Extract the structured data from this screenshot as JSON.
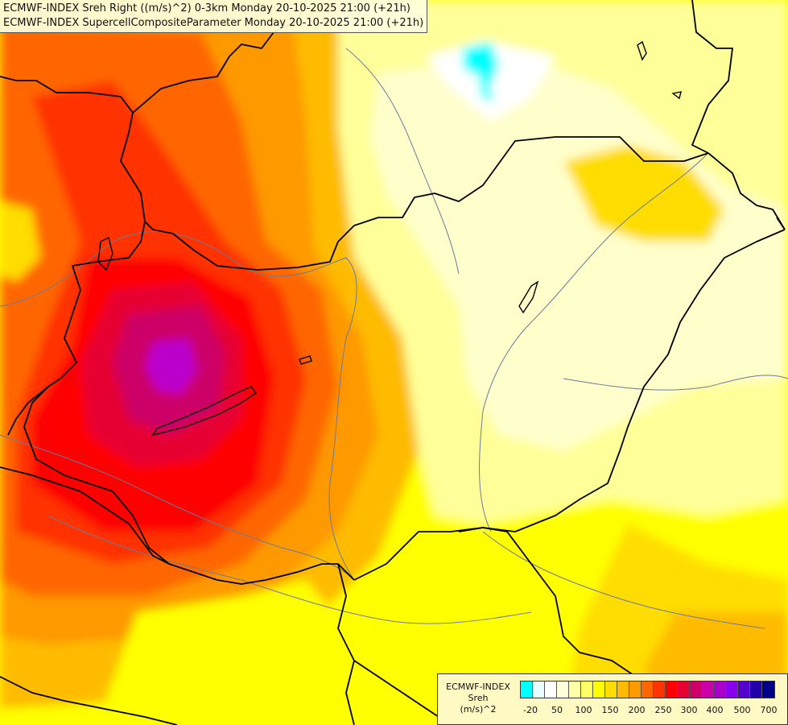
{
  "header": {
    "line1": "ECMWF-INDEX Sreh Right ((m/s)^2) 0-3km Monday 20-10-2025 21:00 (+21h)",
    "line2": "ECMWF-INDEX SupercellCompositeParameter Monday 20-10-2025 21:00 (+21h)"
  },
  "legend": {
    "title1": "ECMWF-INDEX",
    "title2": "Sreh",
    "unit": "(m/s)^2",
    "colors": [
      "#00ffff",
      "#e8ffff",
      "#ffffff",
      "#ffffd9",
      "#ffffa8",
      "#ffff66",
      "#ffff00",
      "#ffdd00",
      "#ffbb00",
      "#ff9900",
      "#ff6600",
      "#ff3300",
      "#ff0000",
      "#e60033",
      "#cc0066",
      "#cc00aa",
      "#aa00cc",
      "#8800ee",
      "#5500cc",
      "#2200aa",
      "#000088"
    ],
    "ticks": [
      "-20",
      "50",
      "100",
      "150",
      "200",
      "250",
      "300",
      "400",
      "500",
      "700"
    ]
  },
  "map": {
    "colors": {
      "base": "#ffff00",
      "light_yellow": "#ffff99",
      "pale_yellow": "#ffffcc",
      "gold": "#ffdd00",
      "orange_light": "#ffbb00",
      "orange": "#ff9900",
      "orange_dark": "#ff6600",
      "red_orange": "#ff3300",
      "red": "#ff0000",
      "crimson": "#e60033",
      "magenta": "#cc0066",
      "purple": "#bb00cc",
      "cyan": "#00ffff",
      "white": "#ffffff",
      "border": "#000000",
      "river": "#6b7a99"
    }
  }
}
